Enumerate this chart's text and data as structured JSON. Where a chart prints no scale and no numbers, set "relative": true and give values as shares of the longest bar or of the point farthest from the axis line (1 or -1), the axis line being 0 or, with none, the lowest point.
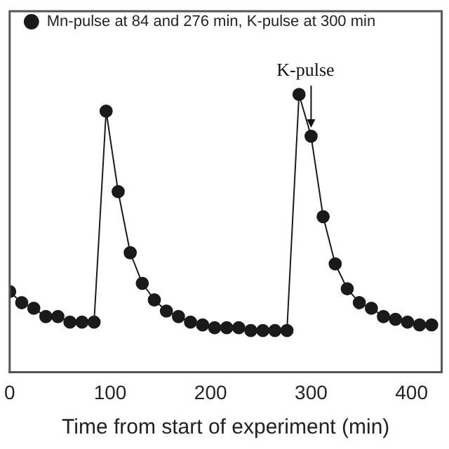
{
  "chart_data": {
    "type": "line",
    "relative": true,
    "xlabel": "Time from start of experiment (min)",
    "x": [
      0,
      12,
      24,
      36,
      48,
      60,
      72,
      84,
      96,
      108,
      120,
      132,
      144,
      156,
      168,
      180,
      192,
      204,
      216,
      228,
      240,
      252,
      264,
      276,
      288,
      300,
      312,
      324,
      336,
      348,
      360,
      372,
      384,
      396,
      408,
      420
    ],
    "series": [
      {
        "name": "Mn-pulse at 84 and 276 min, K-pulse at 300 min",
        "color": "#1a1a1a",
        "values": [
          0.29,
          0.25,
          0.23,
          0.2,
          0.2,
          0.18,
          0.18,
          0.18,
          0.94,
          0.65,
          0.43,
          0.32,
          0.26,
          0.22,
          0.2,
          0.18,
          0.17,
          0.16,
          0.16,
          0.16,
          0.15,
          0.15,
          0.15,
          0.15,
          1,
          0.85,
          0.56,
          0.39,
          0.3,
          0.25,
          0.23,
          0.2,
          0.19,
          0.18,
          0.17,
          0.17
        ]
      }
    ],
    "xlim": [
      0,
      430
    ],
    "xticks": [
      0,
      100,
      200,
      300,
      400
    ],
    "annotations": [
      {
        "text": "K-pulse",
        "x": 300,
        "y": 0.85
      }
    ],
    "marker": "circle",
    "line_style": "solid",
    "legend": "top left",
    "grid": false
  }
}
